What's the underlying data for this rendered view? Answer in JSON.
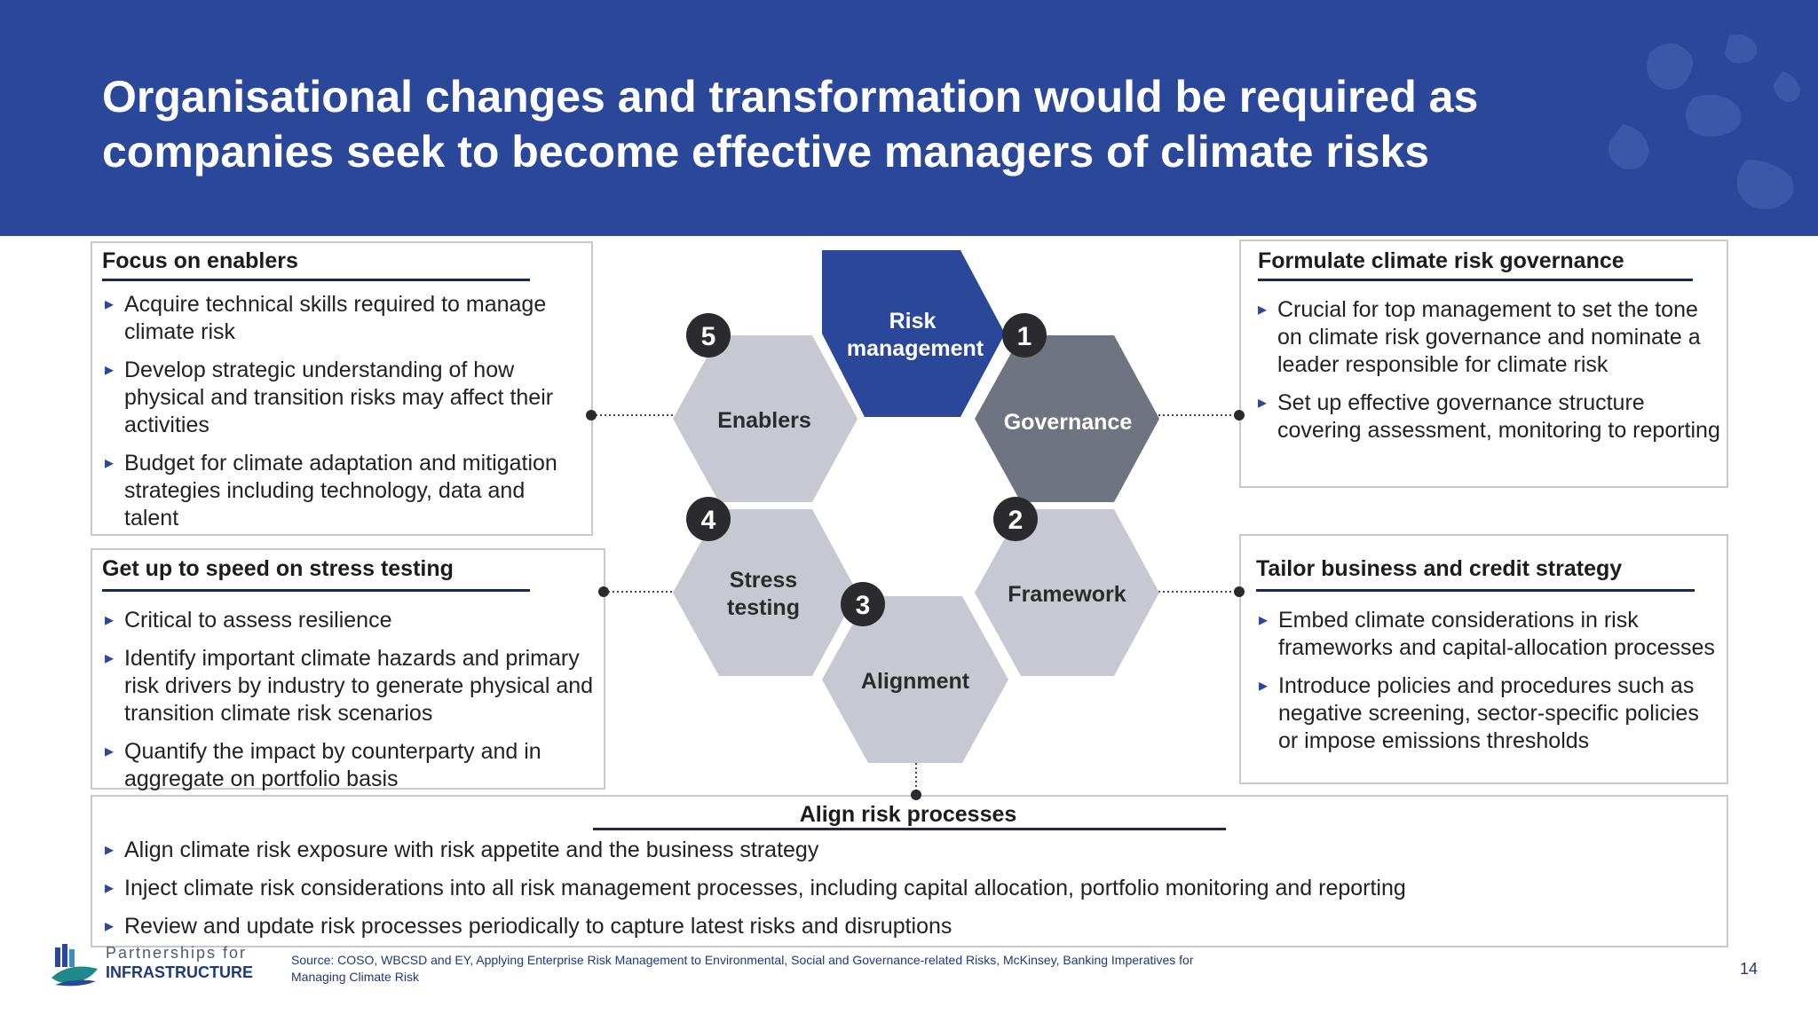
{
  "header": {
    "title": "Organisational changes and transformation would be required as companies seek to become effective managers of climate risks"
  },
  "enablers_box": {
    "title": "Focus on enablers",
    "bullets": [
      "Acquire technical skills required to manage climate risk",
      "Develop strategic understanding of how physical and transition risks may affect their activities",
      "Budget for climate adaptation and mitigation strategies including technology, data and talent"
    ]
  },
  "stress_box": {
    "title": "Get up to speed on stress testing",
    "bullets": [
      "Critical to assess resilience",
      "Identify important climate hazards and primary risk drivers by industry to generate physical and transition climate risk scenarios",
      "Quantify the impact by counterparty and in aggregate on portfolio basis"
    ]
  },
  "governance_box": {
    "title": "Formulate climate risk governance",
    "bullets": [
      "Crucial for top management to set the tone on climate risk governance and nominate a leader responsible for climate risk",
      "Set up effective governance structure covering assessment, monitoring to reporting"
    ]
  },
  "strategy_box": {
    "title": "Tailor business and credit strategy",
    "bullets": [
      "Embed climate considerations in risk frameworks and capital-allocation processes",
      "Introduce policies and procedures such as negative screening, sector-specific policies or impose emissions thresholds"
    ]
  },
  "align_box": {
    "title": "Align risk processes",
    "bullets": [
      "Align climate risk exposure with risk appetite and the business strategy",
      "Inject climate risk considerations into all risk management processes, including capital allocation, portfolio monitoring and reporting",
      "Review and update risk processes periodically to capture latest risks and disruptions"
    ]
  },
  "diagram": {
    "center": {
      "line1": "Risk",
      "line2": "management"
    },
    "hexes": [
      {
        "number": "1",
        "line1": "Governance",
        "line2": ""
      },
      {
        "number": "2",
        "line1": "Framework",
        "line2": ""
      },
      {
        "number": "3",
        "line1": "Alignment",
        "line2": ""
      },
      {
        "number": "4",
        "line1": "Stress",
        "line2": "testing"
      },
      {
        "number": "5",
        "line1": "Enablers",
        "line2": ""
      }
    ]
  },
  "footer": {
    "logo_line1": "Partnerships for",
    "logo_line2": "INFRASTRUCTURE",
    "source_line1": "Source: COSO, WBCSD and EY, Applying Enterprise Risk Management to Environmental, Social and Governance-related Risks, McKinsey, Banking Imperatives for",
    "source_line2": "Managing Climate Risk",
    "page_number": "14"
  },
  "colors": {
    "header_bg": "#2a4799",
    "risk_hex": "#2a4799",
    "governance_hex": "#707481",
    "light_hex": "#c7c8d1",
    "badge": "#2b2b2f"
  }
}
